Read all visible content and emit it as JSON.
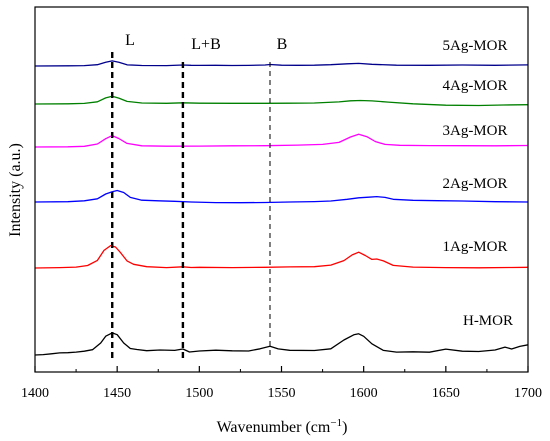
{
  "chart_data": {
    "type": "line",
    "xlabel": "Wavenumber (cm",
    "xlabel_sup": "−1",
    "xlabel_end": ")",
    "ylabel": "Intensity (a.u.)",
    "xlim": [
      1400,
      1700
    ],
    "x_ticks": [
      "1400",
      "1450",
      "1500",
      "1550",
      "1600",
      "1650",
      "1700"
    ],
    "x_reversed": false,
    "grid": false,
    "markers": [
      {
        "x": 1447,
        "label": "L",
        "style": "bold-dash"
      },
      {
        "x": 1490,
        "label": "L+B",
        "style": "bold-dash"
      },
      {
        "x": 1543,
        "label": "B",
        "style": "thin-dash"
      }
    ],
    "series": [
      {
        "name": "5Ag-MOR",
        "color": "#00008b",
        "x": [
          1400,
          1420,
          1430,
          1438,
          1443,
          1447,
          1451,
          1456,
          1465,
          1480,
          1490,
          1495,
          1500,
          1510,
          1520,
          1530,
          1540,
          1543,
          1550,
          1560,
          1570,
          1580,
          1590,
          1597,
          1605,
          1620,
          1640,
          1660,
          1680,
          1700
        ],
        "y": [
          0.0,
          0.2,
          0.5,
          1.6,
          4.6,
          6.1,
          4.5,
          1.5,
          0.6,
          0.5,
          1.2,
          0.9,
          0.7,
          0.8,
          0.6,
          0.7,
          1.2,
          1.8,
          1.0,
          0.8,
          1.0,
          1.6,
          2.7,
          3.1,
          2.1,
          1.0,
          0.8,
          1.2,
          0.8,
          1.3
        ]
      },
      {
        "name": "4Ag-MOR",
        "color": "#008000",
        "x": [
          1400,
          1420,
          1430,
          1438,
          1443,
          1447,
          1451,
          1456,
          1465,
          1480,
          1490,
          1500,
          1520,
          1540,
          1555,
          1570,
          1585,
          1592,
          1598,
          1605,
          1615,
          1630,
          1650,
          1670,
          1685,
          1700
        ],
        "y": [
          0.0,
          0.2,
          0.7,
          2.6,
          7.3,
          9.4,
          7.1,
          3.1,
          1.2,
          0.9,
          1.5,
          1.0,
          0.8,
          0.9,
          1.0,
          1.2,
          2.5,
          3.9,
          4.2,
          3.7,
          2.3,
          0.3,
          -1.5,
          -1.8,
          -1.2,
          -0.8
        ]
      },
      {
        "name": "3Ag-MOR",
        "color": "#ff00ff",
        "x": [
          1400,
          1420,
          1430,
          1438,
          1443,
          1447,
          1451,
          1456,
          1465,
          1480,
          1500,
          1520,
          1540,
          1560,
          1575,
          1585,
          1592,
          1597,
          1602,
          1607,
          1613,
          1622,
          1640,
          1660,
          1680,
          1700
        ],
        "y": [
          0.0,
          0.3,
          0.8,
          3.6,
          10.0,
          13.7,
          10.3,
          4.3,
          1.4,
          1.0,
          1.1,
          1.4,
          1.6,
          2.3,
          3.1,
          5.6,
          12.1,
          15.4,
          12.4,
          6.6,
          3.1,
          2.0,
          1.7,
          1.6,
          1.5,
          1.8
        ]
      },
      {
        "name": "2Ag-MOR",
        "color": "#0000ff",
        "x": [
          1400,
          1420,
          1430,
          1438,
          1443,
          1447,
          1450,
          1454,
          1458,
          1465,
          1475,
          1485,
          1495,
          1510,
          1525,
          1540,
          1555,
          1570,
          1580,
          1590,
          1597,
          1603,
          1608,
          1613,
          1618,
          1630,
          1645,
          1660,
          1680,
          1700
        ],
        "y": [
          0.0,
          0.4,
          1.4,
          3.8,
          9.6,
          12.4,
          13.8,
          11.4,
          5.6,
          2.2,
          1.4,
          0.8,
          0.0,
          -0.7,
          -0.9,
          -0.6,
          0.0,
          0.5,
          1.2,
          3.2,
          5.1,
          5.8,
          6.5,
          5.5,
          3.2,
          2.0,
          1.6,
          1.2,
          0.4,
          0.0
        ]
      },
      {
        "name": "1Ag-MOR",
        "color": "#ff0000",
        "x": [
          1400,
          1415,
          1425,
          1432,
          1438,
          1442,
          1446,
          1449,
          1452,
          1456,
          1460,
          1468,
          1480,
          1490,
          1495,
          1500,
          1520,
          1540,
          1555,
          1570,
          1580,
          1588,
          1593,
          1597,
          1601,
          1605,
          1608,
          1612,
          1618,
          1630,
          1650,
          1670,
          1690,
          1700
        ],
        "y": [
          0.0,
          0.5,
          1.1,
          3.0,
          9.2,
          21.2,
          27.0,
          25.3,
          18.5,
          8.6,
          4.4,
          1.6,
          0.5,
          1.4,
          0.6,
          0.8,
          0.5,
          0.9,
          1.3,
          1.6,
          3.5,
          8.9,
          15.8,
          19.0,
          15.1,
          10.4,
          10.8,
          8.6,
          3.1,
          1.1,
          0.5,
          0.3,
          0.6,
          0.9
        ]
      },
      {
        "name": "H-MOR",
        "color": "#000000",
        "x": [
          1400,
          1405,
          1410,
          1415,
          1420,
          1425,
          1430,
          1435,
          1440,
          1443,
          1447,
          1450,
          1454,
          1458,
          1462,
          1468,
          1476,
          1485,
          1490,
          1494,
          1500,
          1510,
          1520,
          1530,
          1537,
          1543,
          1548,
          1555,
          1570,
          1580,
          1588,
          1594,
          1597,
          1600,
          1605,
          1612,
          1620,
          1630,
          1640,
          1650,
          1660,
          1670,
          1680,
          1686,
          1690,
          1695,
          1700
        ],
        "y": [
          0.0,
          0.5,
          1.4,
          2.5,
          2.8,
          3.5,
          4.6,
          6.4,
          14.5,
          22.7,
          26.6,
          24.4,
          14.5,
          7.8,
          6.6,
          5.2,
          6.0,
          5.5,
          7.2,
          3.6,
          4.8,
          5.8,
          5.1,
          4.8,
          7.5,
          10.5,
          7.4,
          5.7,
          5.4,
          7.5,
          18.1,
          24.3,
          25.6,
          22.5,
          13.5,
          5.6,
          3.5,
          3.9,
          3.4,
          7.1,
          4.6,
          4.2,
          6.0,
          9.5,
          7.2,
          10.4,
          12.3
        ]
      }
    ]
  }
}
